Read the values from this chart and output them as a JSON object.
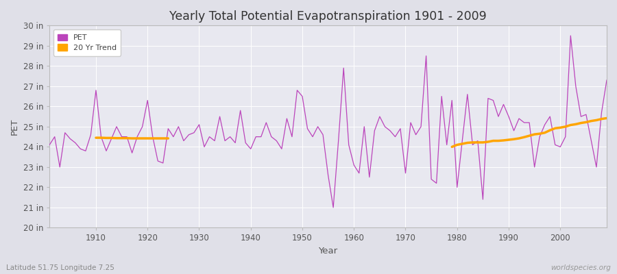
{
  "title": "Yearly Total Potential Evapotranspiration 1901 - 2009",
  "xlabel": "Year",
  "ylabel": "PET",
  "bottom_left_label": "Latitude 51.75 Longitude 7.25",
  "bottom_right_label": "worldspecies.org",
  "ylim": [
    20,
    30
  ],
  "yticks": [
    20,
    21,
    22,
    23,
    24,
    25,
    26,
    27,
    28,
    29,
    30
  ],
  "ytick_labels": [
    "20 in",
    "21 in",
    "22 in",
    "23 in",
    "24 in",
    "25 in",
    "26 in",
    "27 in",
    "28 in",
    "29 in",
    "30 in"
  ],
  "xlim": [
    1901,
    2009
  ],
  "pet_color": "#bb44bb",
  "trend_color": "#ffa500",
  "fig_bg_color": "#e0e0e8",
  "plot_bg_color": "#e8e8f0",
  "grid_color": "#ffffff",
  "xticks": [
    1910,
    1920,
    1930,
    1940,
    1950,
    1960,
    1970,
    1980,
    1990,
    2000
  ],
  "years": [
    1901,
    1902,
    1903,
    1904,
    1905,
    1906,
    1907,
    1908,
    1909,
    1910,
    1911,
    1912,
    1913,
    1914,
    1915,
    1916,
    1917,
    1918,
    1919,
    1920,
    1921,
    1922,
    1923,
    1924,
    1925,
    1926,
    1927,
    1928,
    1929,
    1930,
    1931,
    1932,
    1933,
    1934,
    1935,
    1936,
    1937,
    1938,
    1939,
    1940,
    1941,
    1942,
    1943,
    1944,
    1945,
    1946,
    1947,
    1948,
    1949,
    1950,
    1951,
    1952,
    1953,
    1954,
    1955,
    1956,
    1957,
    1958,
    1959,
    1960,
    1961,
    1962,
    1963,
    1964,
    1965,
    1966,
    1967,
    1968,
    1969,
    1970,
    1971,
    1972,
    1973,
    1974,
    1975,
    1976,
    1977,
    1978,
    1979,
    1980,
    1981,
    1982,
    1983,
    1984,
    1985,
    1986,
    1987,
    1988,
    1989,
    1990,
    1991,
    1992,
    1993,
    1994,
    1995,
    1996,
    1997,
    1998,
    1999,
    2000,
    2001,
    2002,
    2003,
    2004,
    2005,
    2006,
    2007,
    2008,
    2009
  ],
  "pet_values": [
    24.1,
    24.5,
    23.0,
    24.7,
    24.4,
    24.2,
    23.9,
    23.8,
    24.6,
    26.8,
    24.5,
    23.8,
    24.4,
    25.0,
    24.5,
    24.5,
    23.7,
    24.5,
    25.0,
    26.3,
    24.5,
    23.3,
    23.2,
    24.9,
    24.5,
    25.0,
    24.3,
    24.6,
    24.7,
    25.1,
    24.0,
    24.5,
    24.3,
    25.5,
    24.3,
    24.5,
    24.2,
    25.8,
    24.2,
    23.9,
    24.5,
    24.5,
    25.2,
    24.5,
    24.3,
    23.9,
    25.4,
    24.5,
    26.8,
    26.5,
    24.9,
    24.5,
    25.0,
    24.6,
    22.6,
    21.0,
    24.3,
    27.9,
    24.1,
    23.1,
    22.7,
    25.0,
    22.5,
    24.8,
    25.5,
    25.0,
    24.8,
    24.5,
    24.9,
    22.7,
    25.2,
    24.6,
    25.0,
    28.5,
    22.4,
    22.2,
    26.5,
    24.1,
    26.3,
    22.0,
    24.3,
    26.6,
    24.1,
    24.3,
    21.4,
    26.4,
    26.3,
    25.5,
    26.1,
    25.5,
    24.8,
    25.4,
    25.2,
    25.2,
    23.0,
    24.5,
    25.1,
    25.5,
    24.1,
    24.0,
    24.5,
    29.5,
    27.0,
    25.5,
    25.6,
    24.3,
    23.0,
    25.7,
    27.3
  ],
  "trend_seg1_years": [
    1910,
    1911,
    1912,
    1913,
    1914,
    1915,
    1916,
    1917,
    1918,
    1919,
    1920,
    1921,
    1922,
    1923,
    1924
  ],
  "trend_seg1_vals": [
    24.45,
    24.45,
    24.44,
    24.44,
    24.43,
    24.43,
    24.43,
    24.42,
    24.42,
    24.42,
    24.42,
    24.42,
    24.42,
    24.42,
    24.42
  ],
  "trend_seg2_years": [
    1979,
    1980,
    1981,
    1982,
    1983,
    1984,
    1985,
    1986,
    1987,
    1988,
    1989,
    1990,
    1991,
    1992,
    1993,
    1994,
    1995,
    1996,
    1997,
    1998,
    1999,
    2000,
    2001,
    2002,
    2003,
    2004,
    2005,
    2006,
    2007,
    2008,
    2009
  ],
  "trend_seg2_vals": [
    24.0,
    24.1,
    24.15,
    24.2,
    24.22,
    24.22,
    24.22,
    24.25,
    24.3,
    24.3,
    24.32,
    24.35,
    24.38,
    24.42,
    24.48,
    24.55,
    24.62,
    24.65,
    24.7,
    24.82,
    24.92,
    24.95,
    25.0,
    25.08,
    25.12,
    25.18,
    25.22,
    25.28,
    25.32,
    25.38,
    25.42
  ]
}
